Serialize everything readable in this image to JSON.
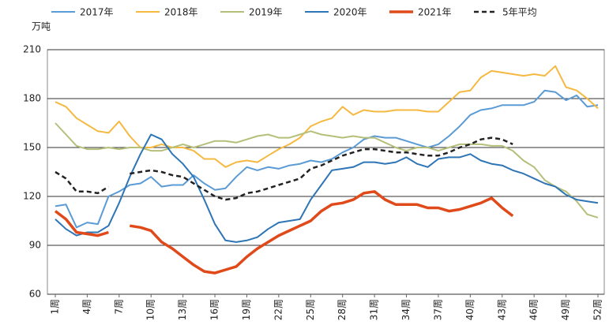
{
  "chart_data": {
    "type": "line",
    "y_label": "万吨",
    "categories": [
      "1周",
      null,
      null,
      "4周",
      null,
      null,
      "7周",
      null,
      null,
      "10周",
      null,
      null,
      "13周",
      null,
      null,
      "16周",
      null,
      null,
      "19周",
      null,
      null,
      "22周",
      null,
      null,
      "25周",
      null,
      null,
      "28周",
      null,
      null,
      "31周",
      null,
      null,
      "34周",
      null,
      null,
      "37周",
      null,
      null,
      "40周",
      null,
      null,
      "43周",
      null,
      null,
      "46周",
      null,
      null,
      "49周",
      null,
      null,
      "52周"
    ],
    "ylim": [
      60,
      210
    ],
    "yticks": [
      60,
      90,
      120,
      150,
      180,
      210
    ],
    "grid": true,
    "series": [
      {
        "name": "2017年",
        "color": "#5b9bd5",
        "dash": false,
        "width": 2,
        "values": [
          114,
          115,
          101,
          104,
          103,
          120,
          123,
          127,
          128,
          132,
          126,
          127,
          127,
          133,
          128,
          124,
          125,
          132,
          138,
          136,
          138,
          137,
          139,
          140,
          142,
          141,
          143,
          147,
          150,
          155,
          157,
          156,
          156,
          154,
          152,
          150,
          152,
          157,
          163,
          170,
          173,
          174,
          176,
          176,
          176,
          178,
          185,
          184,
          179,
          182,
          175,
          176
        ]
      },
      {
        "name": "2018年",
        "color": "#f5b942",
        "dash": false,
        "width": 2,
        "values": [
          178,
          175,
          168,
          164,
          160,
          159,
          166,
          157,
          150,
          150,
          152,
          150,
          150,
          148,
          143,
          143,
          138,
          141,
          142,
          141,
          145,
          149,
          152,
          156,
          163,
          166,
          168,
          175,
          170,
          173,
          172,
          172,
          173,
          173,
          173,
          172,
          172,
          178,
          184,
          185,
          193,
          197,
          196,
          195,
          194,
          195,
          194,
          200,
          187,
          185,
          180,
          174
        ]
      },
      {
        "name": "2019年",
        "color": "#b5bf7a",
        "dash": false,
        "width": 2,
        "values": [
          165,
          158,
          151,
          149,
          149,
          150,
          149,
          150,
          150,
          148,
          148,
          150,
          152,
          150,
          152,
          154,
          154,
          153,
          155,
          157,
          158,
          156,
          156,
          158,
          160,
          158,
          157,
          156,
          157,
          156,
          156,
          153,
          150,
          148,
          150,
          150,
          148,
          150,
          152,
          152,
          152,
          151,
          151,
          148,
          142,
          138,
          130,
          126,
          123,
          117,
          109,
          107
        ]
      },
      {
        "name": "2020年",
        "color": "#2e75b6",
        "dash": false,
        "width": 2,
        "values": [
          106,
          100,
          96,
          98,
          98,
          102,
          116,
          132,
          146,
          158,
          155,
          146,
          140,
          132,
          118,
          103,
          93,
          92,
          93,
          95,
          100,
          104,
          105,
          106,
          118,
          127,
          136,
          137,
          138,
          141,
          141,
          140,
          141,
          144,
          140,
          138,
          143,
          144,
          144,
          146,
          142,
          140,
          139,
          136,
          134,
          131,
          128,
          126,
          121,
          118,
          117,
          116
        ]
      },
      {
        "name": "2021年",
        "color": "#e04a1a",
        "dash": false,
        "width": 3.5,
        "values": [
          111,
          106,
          98,
          97,
          96,
          98,
          null,
          102,
          101,
          99,
          92,
          88,
          83,
          78,
          74,
          73,
          75,
          77,
          83,
          88,
          92,
          96,
          99,
          102,
          105,
          111,
          115,
          116,
          118,
          122,
          123,
          118,
          115,
          115,
          115,
          113,
          113,
          111,
          112,
          114,
          116,
          119,
          113,
          108,
          null,
          null,
          null,
          null,
          null,
          null,
          null,
          null
        ]
      },
      {
        "name": "5年平均",
        "color": "#222222",
        "dash": true,
        "width": 2.5,
        "values": [
          135,
          131,
          123,
          123,
          122,
          126,
          null,
          134,
          135,
          136,
          135,
          133,
          132,
          128,
          124,
          120,
          118,
          119,
          122,
          123,
          125,
          127,
          129,
          131,
          137,
          139,
          142,
          145,
          147,
          149,
          149,
          148,
          147,
          147,
          146,
          145,
          145,
          147,
          150,
          152,
          155,
          156,
          155,
          152,
          null,
          null,
          null,
          null,
          null,
          null,
          null,
          null
        ]
      }
    ]
  }
}
